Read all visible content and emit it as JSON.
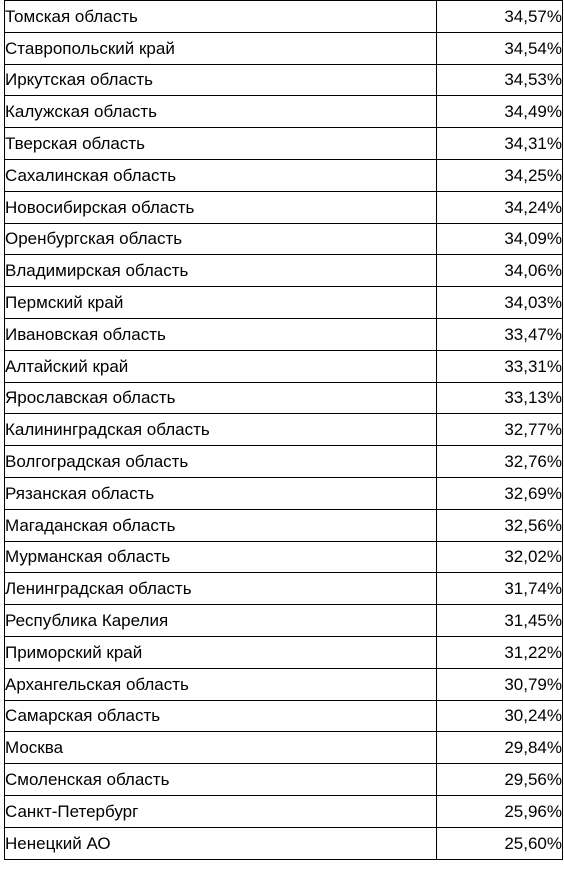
{
  "table": {
    "rows": [
      {
        "region": "Томская область",
        "value": "34,57%"
      },
      {
        "region": "Ставропольский край",
        "value": "34,54%"
      },
      {
        "region": "Иркутская область",
        "value": "34,53%"
      },
      {
        "region": "Калужская область",
        "value": "34,49%"
      },
      {
        "region": "Тверская область",
        "value": "34,31%"
      },
      {
        "region": "Сахалинская область",
        "value": "34,25%"
      },
      {
        "region": "Новосибирская область",
        "value": "34,24%"
      },
      {
        "region": "Оренбургская область",
        "value": "34,09%"
      },
      {
        "region": "Владимирская область",
        "value": "34,06%"
      },
      {
        "region": "Пермский край",
        "value": "34,03%"
      },
      {
        "region": "Ивановская область",
        "value": "33,47%"
      },
      {
        "region": "Алтайский край",
        "value": "33,31%"
      },
      {
        "region": "Ярославская область",
        "value": "33,13%"
      },
      {
        "region": "Калининградская область",
        "value": "32,77%"
      },
      {
        "region": "Волгоградская область",
        "value": "32,76%"
      },
      {
        "region": "Рязанская область",
        "value": "32,69%"
      },
      {
        "region": "Магаданская область",
        "value": "32,56%"
      },
      {
        "region": "Мурманская область",
        "value": "32,02%"
      },
      {
        "region": "Ленинградская область",
        "value": "31,74%"
      },
      {
        "region": "Республика Карелия",
        "value": "31,45%"
      },
      {
        "region": "Приморский край",
        "value": "31,22%"
      },
      {
        "region": "Архангельская область",
        "value": "30,79%"
      },
      {
        "region": "Самарская область",
        "value": "30,24%"
      },
      {
        "region": "Москва",
        "value": "29,84%"
      },
      {
        "region": "Смоленская область",
        "value": "29,56%"
      },
      {
        "region": "Санкт-Петербург",
        "value": "25,96%"
      },
      {
        "region": "Ненецкий АО",
        "value": "25,60%"
      }
    ]
  }
}
